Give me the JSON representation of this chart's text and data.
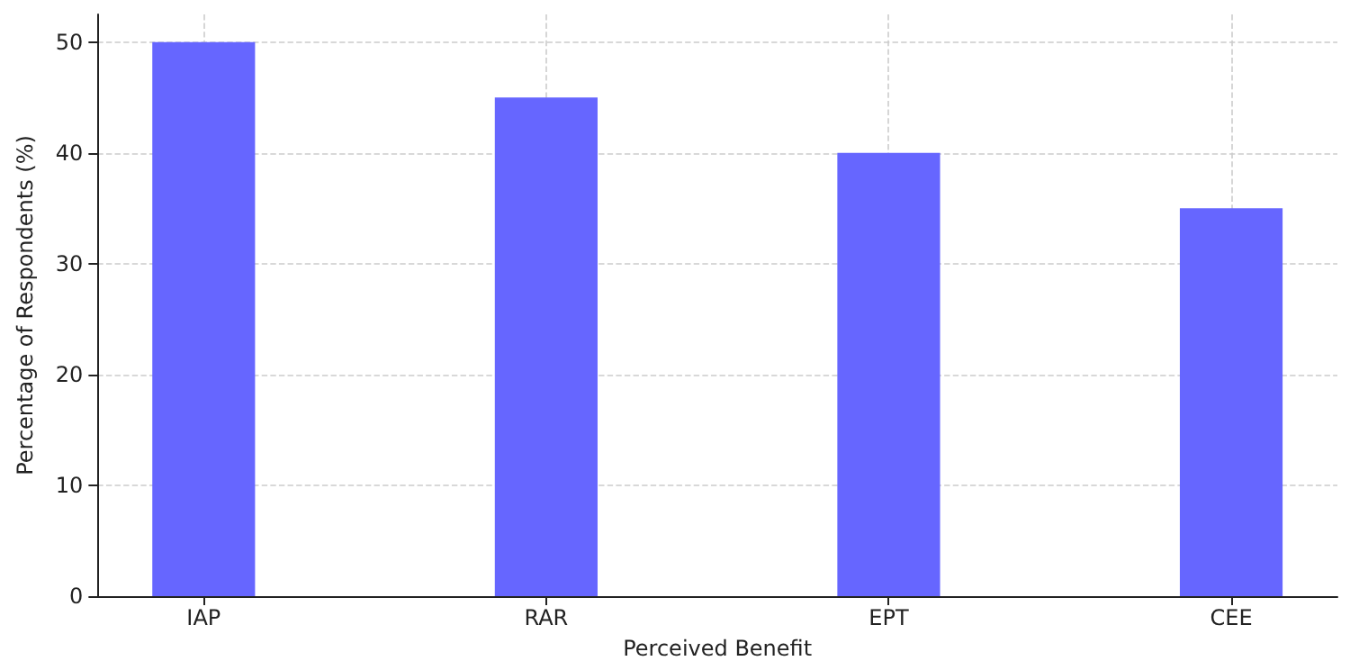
{
  "chart_data": {
    "type": "bar",
    "xlabel": "Perceived Benefit",
    "ylabel": "Percentage of Respondents (%)",
    "categories": [
      "IAP",
      "RAR",
      "EPT",
      "CEE"
    ],
    "values": [
      50,
      45,
      40,
      35
    ],
    "color": "#6666ff",
    "ylim": [
      0,
      52.5
    ],
    "yticks": [
      0,
      10,
      20,
      30,
      40,
      50
    ],
    "grid": true
  }
}
